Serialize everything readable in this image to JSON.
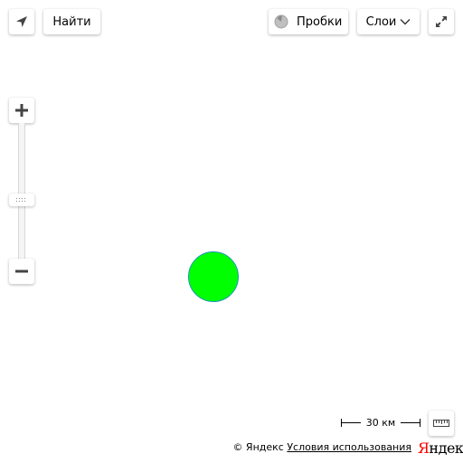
{
  "toolbar": {
    "search_label": "Найти",
    "traffic_label": "Пробки",
    "layers_label": "Слои"
  },
  "icons": {
    "geolocation": "navigation-arrow-icon",
    "traffic": "traffic-light-icon",
    "layers_dropdown": "chevron-down-icon",
    "fullscreen": "expand-icon",
    "zoom_in": "plus-icon",
    "zoom_out": "minus-icon",
    "ruler": "ruler-icon"
  },
  "zoom": {
    "in_label": "+",
    "out_label": "−"
  },
  "placemark": {
    "fill_color": "#00ff00",
    "stroke_color": "#1e98b8"
  },
  "scale": {
    "label": "30 км"
  },
  "footer": {
    "copyright": "© Яндекс",
    "terms_link": "Условия использования",
    "logo_first_letter": "Я",
    "logo_rest": "ндекс"
  }
}
